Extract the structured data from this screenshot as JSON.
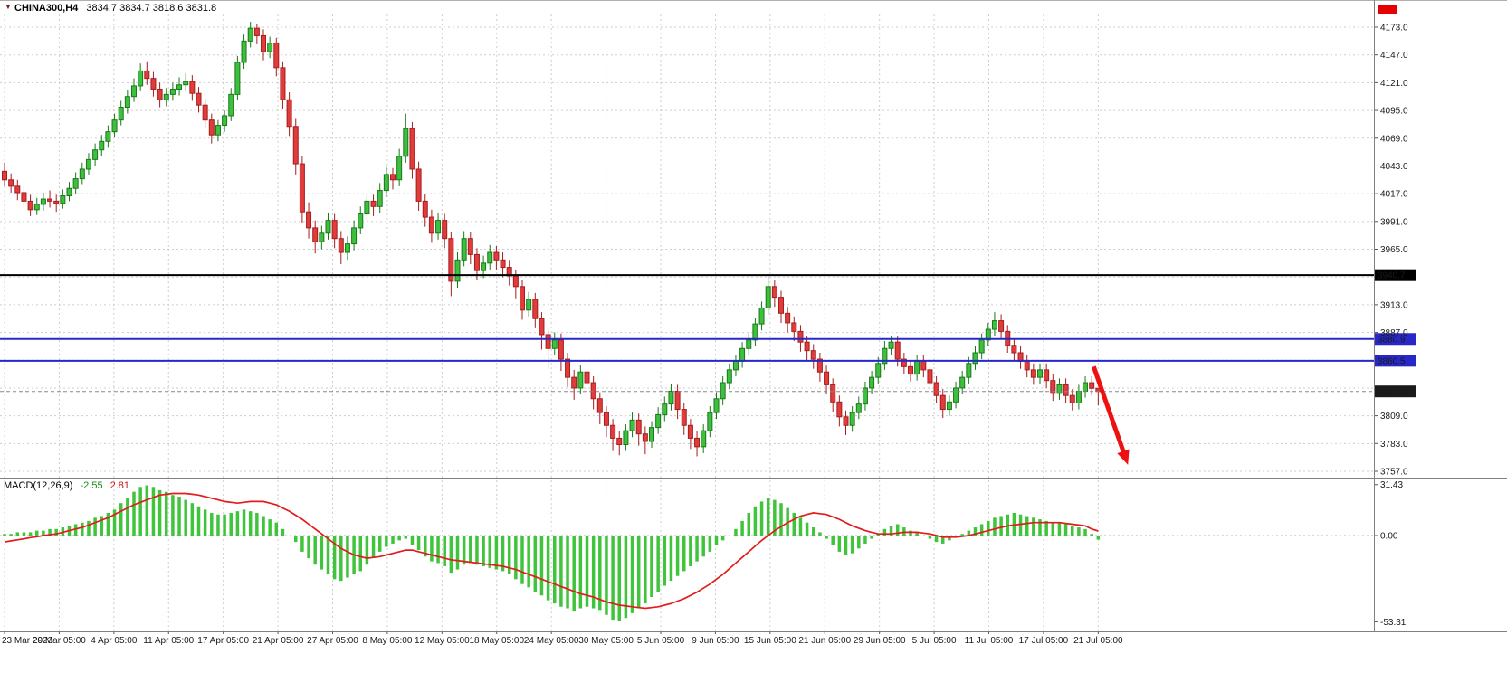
{
  "header": {
    "symbol": "CHINA300,H4",
    "ohlc": "3834.7 3834.7 3818.6 3831.8"
  },
  "macd_label": {
    "name": "MACD(12,26,9)",
    "main_value": "-2.55",
    "signal_value": "2.81"
  },
  "chart_data": {
    "type": "candlestick",
    "symbol": "CHINA300",
    "timeframe": "H4",
    "price_axis": {
      "min": 3757,
      "max": 4173,
      "grid_step": 26,
      "tick_labels": [
        "4173.0",
        "4147.0",
        "4121.0",
        "4095.0",
        "4069.0",
        "4043.0",
        "4017.0",
        "3991.0",
        "3965.0",
        "3913.0",
        "3887.0",
        "3809.0",
        "3783.0",
        "3757.0"
      ]
    },
    "time_labels": [
      "23 Mar 2023",
      "29 Mar 05:00",
      "4 Apr 05:00",
      "11 Apr 05:00",
      "17 Apr 05:00",
      "21 Apr 05:00",
      "27 Apr 05:00",
      "8 May 05:00",
      "12 May 05:00",
      "18 May 05:00",
      "24 May 05:00",
      "30 May 05:00",
      "5 Jun 05:00",
      "9 Jun 05:00",
      "15 Jun 05:00",
      "21 Jun 05:00",
      "29 Jun 05:00",
      "5 Jul 05:00",
      "11 Jul 05:00",
      "17 Jul 05:00",
      "21 Jul 05:00"
    ],
    "candles": [
      [
        4038,
        4046,
        4024,
        4030
      ],
      [
        4030,
        4036,
        4018,
        4024
      ],
      [
        4024,
        4030,
        4011,
        4018
      ],
      [
        4018,
        4024,
        4003,
        4010
      ],
      [
        4010,
        4016,
        3996,
        4002
      ],
      [
        4002,
        4013,
        3997,
        4007
      ],
      [
        4007,
        4018,
        4001,
        4012
      ],
      [
        4012,
        4020,
        4004,
        4010
      ],
      [
        4010,
        4016,
        4000,
        4008
      ],
      [
        4008,
        4021,
        4003,
        4015
      ],
      [
        4015,
        4028,
        4010,
        4022
      ],
      [
        4022,
        4037,
        4017,
        4031
      ],
      [
        4031,
        4046,
        4026,
        4040
      ],
      [
        4040,
        4055,
        4035,
        4049
      ],
      [
        4049,
        4064,
        4043,
        4058
      ],
      [
        4058,
        4072,
        4052,
        4066
      ],
      [
        4066,
        4081,
        4060,
        4075
      ],
      [
        4075,
        4092,
        4070,
        4086
      ],
      [
        4086,
        4104,
        4081,
        4098
      ],
      [
        4098,
        4114,
        4092,
        4108
      ],
      [
        4108,
        4125,
        4103,
        4118
      ],
      [
        4118,
        4139,
        4113,
        4132
      ],
      [
        4132,
        4141,
        4119,
        4125
      ],
      [
        4125,
        4131,
        4108,
        4115
      ],
      [
        4115,
        4121,
        4098,
        4105
      ],
      [
        4105,
        4116,
        4099,
        4110
      ],
      [
        4110,
        4121,
        4104,
        4115
      ],
      [
        4115,
        4126,
        4109,
        4119
      ],
      [
        4119,
        4130,
        4113,
        4122
      ],
      [
        4122,
        4128,
        4104,
        4111
      ],
      [
        4111,
        4117,
        4093,
        4100
      ],
      [
        4100,
        4106,
        4079,
        4086
      ],
      [
        4086,
        4092,
        4064,
        4072
      ],
      [
        4072,
        4086,
        4066,
        4081
      ],
      [
        4081,
        4095,
        4075,
        4090
      ],
      [
        4090,
        4116,
        4085,
        4110
      ],
      [
        4110,
        4146,
        4105,
        4140
      ],
      [
        4140,
        4166,
        4134,
        4160
      ],
      [
        4160,
        4178,
        4154,
        4172
      ],
      [
        4172,
        4176,
        4157,
        4165
      ],
      [
        4165,
        4171,
        4142,
        4150
      ],
      [
        4150,
        4164,
        4144,
        4158
      ],
      [
        4158,
        4163,
        4127,
        4135
      ],
      [
        4135,
        4141,
        4096,
        4105
      ],
      [
        4105,
        4112,
        4071,
        4080
      ],
      [
        4080,
        4087,
        4035,
        4045
      ],
      [
        4045,
        4052,
        3990,
        4000
      ],
      [
        4000,
        4009,
        3975,
        3985
      ],
      [
        3985,
        3992,
        3961,
        3972
      ],
      [
        3972,
        3987,
        3965,
        3980
      ],
      [
        3980,
        3999,
        3974,
        3992
      ],
      [
        3992,
        3998,
        3966,
        3975
      ],
      [
        3975,
        3982,
        3951,
        3962
      ],
      [
        3962,
        3977,
        3955,
        3970
      ],
      [
        3970,
        3992,
        3964,
        3985
      ],
      [
        3985,
        4005,
        3979,
        3998
      ],
      [
        3998,
        4017,
        3992,
        4010
      ],
      [
        4010,
        4016,
        3996,
        4005
      ],
      [
        4005,
        4027,
        3999,
        4020
      ],
      [
        4020,
        4042,
        4014,
        4035
      ],
      [
        4035,
        4041,
        4021,
        4030
      ],
      [
        4030,
        4059,
        4024,
        4052
      ],
      [
        4052,
        4092,
        4046,
        4078
      ],
      [
        4078,
        4084,
        4031,
        4040
      ],
      [
        4040,
        4047,
        4001,
        4010
      ],
      [
        4010,
        4017,
        3986,
        3995
      ],
      [
        3995,
        4002,
        3971,
        3980
      ],
      [
        3980,
        3999,
        3974,
        3992
      ],
      [
        3992,
        3998,
        3966,
        3975
      ],
      [
        3975,
        3981,
        3921,
        3935
      ],
      [
        3935,
        3962,
        3929,
        3955
      ],
      [
        3955,
        3982,
        3949,
        3975
      ],
      [
        3975,
        3981,
        3951,
        3960
      ],
      [
        3960,
        3966,
        3936,
        3945
      ],
      [
        3945,
        3959,
        3938,
        3952
      ],
      [
        3952,
        3969,
        3946,
        3962
      ],
      [
        3962,
        3968,
        3946,
        3955
      ],
      [
        3955,
        3962,
        3939,
        3948
      ],
      [
        3948,
        3955,
        3931,
        3940
      ],
      [
        3940,
        3946,
        3919,
        3930
      ],
      [
        3930,
        3936,
        3899,
        3908
      ],
      [
        3908,
        3925,
        3902,
        3918
      ],
      [
        3918,
        3924,
        3891,
        3900
      ],
      [
        3900,
        3906,
        3871,
        3885
      ],
      [
        3885,
        3891,
        3853,
        3872
      ],
      [
        3872,
        3887,
        3866,
        3880
      ],
      [
        3880,
        3886,
        3851,
        3862
      ],
      [
        3862,
        3868,
        3836,
        3845
      ],
      [
        3845,
        3852,
        3824,
        3835
      ],
      [
        3835,
        3857,
        3829,
        3850
      ],
      [
        3850,
        3856,
        3831,
        3840
      ],
      [
        3840,
        3846,
        3815,
        3825
      ],
      [
        3825,
        3831,
        3801,
        3812
      ],
      [
        3812,
        3818,
        3789,
        3800
      ],
      [
        3800,
        3806,
        3776,
        3788
      ],
      [
        3788,
        3795,
        3772,
        3782
      ],
      [
        3782,
        3801,
        3776,
        3795
      ],
      [
        3795,
        3812,
        3789,
        3805
      ],
      [
        3805,
        3811,
        3781,
        3792
      ],
      [
        3792,
        3799,
        3773,
        3785
      ],
      [
        3785,
        3804,
        3779,
        3798
      ],
      [
        3798,
        3817,
        3792,
        3810
      ],
      [
        3810,
        3827,
        3804,
        3820
      ],
      [
        3820,
        3839,
        3814,
        3832
      ],
      [
        3832,
        3838,
        3806,
        3815
      ],
      [
        3815,
        3821,
        3791,
        3800
      ],
      [
        3800,
        3806,
        3778,
        3788
      ],
      [
        3788,
        3795,
        3771,
        3780
      ],
      [
        3780,
        3801,
        3774,
        3795
      ],
      [
        3795,
        3818,
        3789,
        3812
      ],
      [
        3812,
        3831,
        3806,
        3825
      ],
      [
        3825,
        3846,
        3819,
        3840
      ],
      [
        3840,
        3858,
        3834,
        3852
      ],
      [
        3852,
        3866,
        3846,
        3860
      ],
      [
        3860,
        3878,
        3854,
        3872
      ],
      [
        3872,
        3886,
        3866,
        3880
      ],
      [
        3880,
        3901,
        3874,
        3895
      ],
      [
        3895,
        3916,
        3889,
        3910
      ],
      [
        3910,
        3941,
        3904,
        3930
      ],
      [
        3930,
        3936,
        3911,
        3920
      ],
      [
        3920,
        3926,
        3896,
        3905
      ],
      [
        3905,
        3911,
        3887,
        3896
      ],
      [
        3896,
        3902,
        3879,
        3888
      ],
      [
        3888,
        3894,
        3869,
        3878
      ],
      [
        3878,
        3884,
        3861,
        3870
      ],
      [
        3870,
        3876,
        3853,
        3862
      ],
      [
        3862,
        3868,
        3841,
        3850
      ],
      [
        3850,
        3856,
        3829,
        3838
      ],
      [
        3838,
        3844,
        3813,
        3822
      ],
      [
        3822,
        3828,
        3799,
        3808
      ],
      [
        3808,
        3814,
        3791,
        3800
      ],
      [
        3800,
        3818,
        3794,
        3812
      ],
      [
        3812,
        3827,
        3806,
        3820
      ],
      [
        3820,
        3841,
        3814,
        3835
      ],
      [
        3835,
        3851,
        3829,
        3845
      ],
      [
        3845,
        3864,
        3839,
        3858
      ],
      [
        3858,
        3879,
        3852,
        3872
      ],
      [
        3872,
        3884,
        3866,
        3878
      ],
      [
        3878,
        3884,
        3855,
        3862
      ],
      [
        3862,
        3868,
        3848,
        3855
      ],
      [
        3855,
        3861,
        3841,
        3848
      ],
      [
        3848,
        3866,
        3842,
        3860
      ],
      [
        3860,
        3866,
        3845,
        3852
      ],
      [
        3852,
        3858,
        3833,
        3840
      ],
      [
        3840,
        3846,
        3821,
        3828
      ],
      [
        3828,
        3834,
        3807,
        3815
      ],
      [
        3815,
        3828,
        3809,
        3822
      ],
      [
        3822,
        3841,
        3816,
        3835
      ],
      [
        3835,
        3851,
        3829,
        3845
      ],
      [
        3845,
        3864,
        3839,
        3858
      ],
      [
        3858,
        3874,
        3852,
        3868
      ],
      [
        3868,
        3886,
        3862,
        3880
      ],
      [
        3880,
        3896,
        3874,
        3890
      ],
      [
        3890,
        3906,
        3884,
        3898
      ],
      [
        3898,
        3904,
        3881,
        3888
      ],
      [
        3888,
        3894,
        3868,
        3875
      ],
      [
        3875,
        3881,
        3861,
        3868
      ],
      [
        3868,
        3874,
        3853,
        3860
      ],
      [
        3860,
        3866,
        3845,
        3852
      ],
      [
        3852,
        3858,
        3838,
        3845
      ],
      [
        3845,
        3858,
        3839,
        3852
      ],
      [
        3852,
        3858,
        3835,
        3842
      ],
      [
        3842,
        3848,
        3823,
        3830
      ],
      [
        3830,
        3844,
        3824,
        3838
      ],
      [
        3838,
        3844,
        3821,
        3828
      ],
      [
        3828,
        3834,
        3814,
        3821
      ],
      [
        3821,
        3838,
        3815,
        3832
      ],
      [
        3832,
        3846,
        3826,
        3840
      ],
      [
        3840,
        3846,
        3828,
        3834.7
      ],
      [
        3834.7,
        3834.7,
        3818.6,
        3831.8
      ]
    ],
    "levels": [
      {
        "value": 3940.7,
        "label": "3940.7",
        "line_color": "#000000",
        "line_style": "solid",
        "line_width": 2,
        "badge_color": "#000000"
      },
      {
        "value": 3880.9,
        "label": "3880.9",
        "line_color": "#2828c8",
        "line_style": "solid",
        "line_width": 2,
        "badge_color": "#2828c8"
      },
      {
        "value": 3860.5,
        "label": "3860.5",
        "line_color": "#2828c8",
        "line_style": "solid",
        "line_width": 2,
        "badge_color": "#2828c8"
      },
      {
        "value": 3831.8,
        "label": "3831.8",
        "line_color": "#888888",
        "line_style": "dashed",
        "line_width": 1,
        "badge_color": "#1a1a1a"
      }
    ],
    "macd": {
      "tick_labels": [
        "31.43",
        "0.00",
        "-53.31"
      ],
      "tick_values": [
        31.43,
        0,
        -53.31
      ],
      "hist": [
        1,
        1,
        2,
        2,
        2,
        3,
        3,
        4,
        4,
        5,
        6,
        7,
        8,
        9,
        11,
        12,
        14,
        16,
        20,
        23,
        27,
        30,
        31,
        30,
        28,
        27,
        25,
        24,
        22,
        20,
        18,
        16,
        14,
        13,
        13,
        14,
        15,
        16,
        15,
        14,
        12,
        10,
        8,
        4,
        0,
        -4,
        -10,
        -14,
        -18,
        -21,
        -24,
        -27,
        -28,
        -26,
        -24,
        -22,
        -18,
        -14,
        -10,
        -7,
        -5,
        -3,
        -2,
        -6,
        -9,
        -13,
        -16,
        -17,
        -19,
        -23,
        -21,
        -18,
        -17,
        -18,
        -19,
        -20,
        -21,
        -22,
        -24,
        -27,
        -30,
        -32,
        -35,
        -37,
        -40,
        -42,
        -44,
        -45,
        -47,
        -45,
        -44,
        -45,
        -46,
        -49,
        -52,
        -53,
        -51,
        -48,
        -45,
        -42,
        -38,
        -35,
        -31,
        -28,
        -25,
        -22,
        -19,
        -16,
        -13,
        -10,
        -6,
        -3,
        0,
        4,
        9,
        14,
        18,
        21,
        23,
        22,
        20,
        17,
        14,
        11,
        8,
        5,
        2,
        -2,
        -6,
        -10,
        -12,
        -11,
        -8,
        -5,
        -2,
        1,
        4,
        6,
        7,
        5,
        3,
        2,
        0,
        -2,
        -4,
        -5,
        -3,
        -1,
        1,
        3,
        5,
        7,
        9,
        11,
        12,
        13,
        14,
        13,
        12,
        11,
        10,
        9,
        8,
        8,
        7,
        6,
        5,
        4,
        1,
        -2.55
      ],
      "signal": [
        -4,
        -3.3,
        -2.7,
        -2,
        -1.3,
        -0.7,
        0,
        0.5,
        1,
        2,
        3,
        4,
        5,
        6.5,
        8,
        9.5,
        11,
        13,
        15,
        17,
        19,
        20.5,
        22,
        23.5,
        25,
        25.5,
        26,
        26,
        26,
        25.5,
        25,
        24,
        23,
        22,
        21,
        20.5,
        20,
        20.5,
        21,
        21,
        21,
        20,
        19,
        17,
        15,
        12.5,
        10,
        7,
        4,
        1,
        -2,
        -5,
        -8,
        -10,
        -12,
        -13,
        -14,
        -13.5,
        -13,
        -12,
        -11,
        -10,
        -9,
        -9,
        -10,
        -11,
        -12,
        -13,
        -14,
        -15,
        -15.5,
        -16,
        -16.5,
        -17,
        -17.5,
        -18,
        -18.5,
        -19,
        -20,
        -21,
        -22.5,
        -24,
        -25.5,
        -27,
        -28.5,
        -30,
        -31.5,
        -33,
        -34.5,
        -36,
        -37,
        -38,
        -39.5,
        -41,
        -42,
        -43,
        -43.5,
        -44,
        -44.5,
        -45,
        -44.5,
        -44,
        -43,
        -42,
        -40.5,
        -39,
        -37,
        -35,
        -32.5,
        -30,
        -27,
        -24,
        -20.5,
        -17,
        -13.5,
        -10,
        -6.5,
        -3,
        0,
        3,
        5.5,
        8,
        10,
        12,
        13,
        14,
        13.5,
        13,
        11.5,
        10,
        8,
        6,
        4.5,
        3,
        2,
        1,
        1,
        1,
        1.5,
        2,
        2,
        2,
        1.5,
        1,
        0,
        -1,
        -1,
        -1,
        -0.5,
        0,
        1,
        2,
        3,
        4,
        5,
        6,
        6.5,
        7,
        7.5,
        8,
        8,
        8,
        8,
        8,
        7.5,
        7,
        6.5,
        6,
        4,
        2.81
      ]
    },
    "annotations": {
      "arrow": {
        "from_index": 168.3,
        "from_price": 3855,
        "to_index": 173.6,
        "to_price": 3763,
        "color": "#ee1111"
      }
    },
    "colors": {
      "up_fill": "#3fbf3f",
      "up_border": "#167a16",
      "down_fill": "#e03c3c",
      "down_border": "#a51d1d",
      "hist": "#3fc43c",
      "signal": "#e31b1b",
      "grid": "#cdcdcd",
      "frame": "#808080",
      "axis_text": "#1a1a1a"
    }
  }
}
